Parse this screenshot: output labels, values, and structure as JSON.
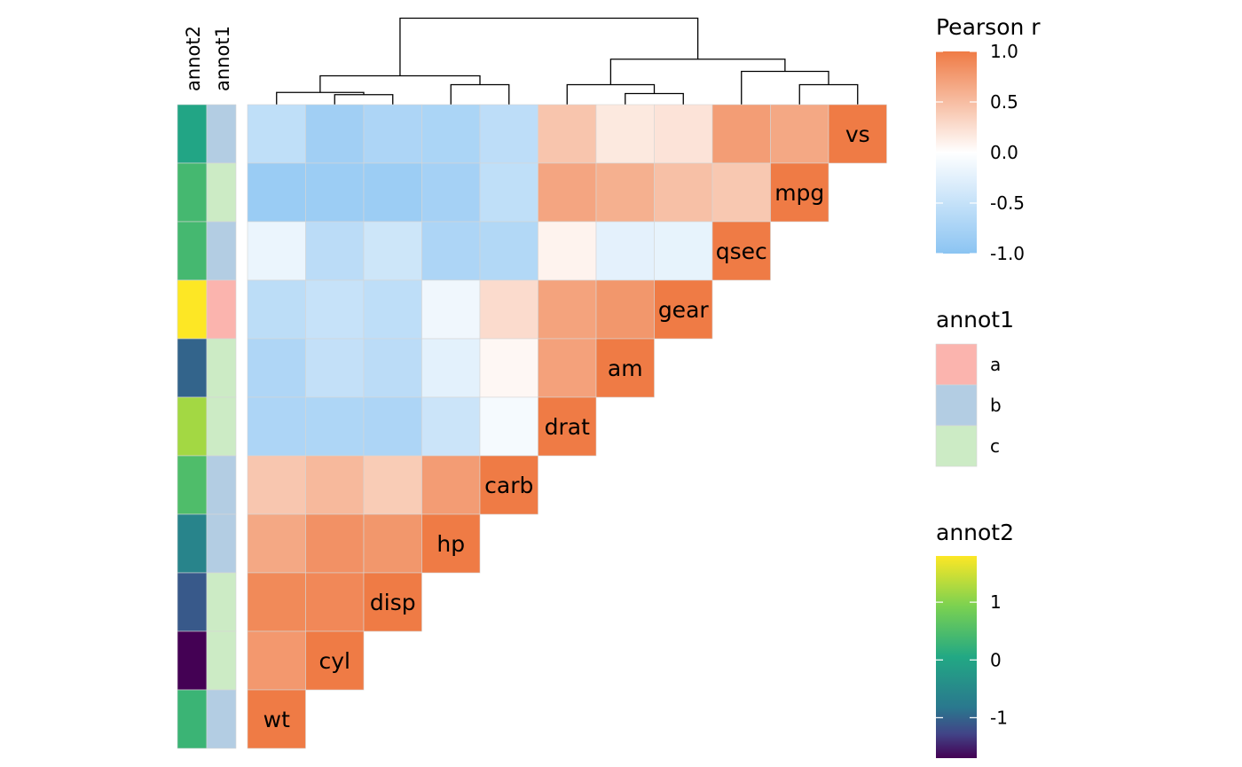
{
  "chart_data": {
    "type": "heatmap",
    "title": "",
    "variables_rows": [
      "vs",
      "mpg",
      "qsec",
      "gear",
      "am",
      "drat",
      "carb",
      "hp",
      "disp",
      "cyl",
      "wt"
    ],
    "variables_cols": [
      "wt",
      "cyl",
      "disp",
      "hp",
      "carb",
      "drat",
      "am",
      "gear",
      "qsec",
      "mpg",
      "vs"
    ],
    "matrix_lower_triangle": [
      [
        -0.55,
        -0.81,
        -0.71,
        -0.72,
        -0.57,
        0.44,
        0.17,
        0.21,
        0.74,
        0.66,
        1.0
      ],
      [
        -0.87,
        -0.85,
        -0.85,
        -0.78,
        -0.55,
        0.68,
        0.6,
        0.48,
        0.42,
        1.0
      ],
      [
        -0.17,
        -0.59,
        -0.43,
        -0.71,
        -0.66,
        0.09,
        -0.23,
        -0.21,
        1.0
      ],
      [
        -0.58,
        -0.49,
        -0.56,
        -0.13,
        0.27,
        0.7,
        0.79,
        1.0
      ],
      [
        -0.69,
        -0.52,
        -0.59,
        -0.24,
        0.06,
        0.71,
        1.0
      ],
      [
        -0.71,
        -0.7,
        -0.71,
        -0.45,
        -0.09,
        1.0
      ],
      [
        0.43,
        0.53,
        0.39,
        0.75,
        1.0
      ],
      [
        0.66,
        0.83,
        0.79,
        1.0
      ],
      [
        0.89,
        0.9,
        1.0
      ],
      [
        0.78,
        1.0
      ],
      [
        1.0
      ]
    ],
    "color_scale": {
      "title": "Pearson r",
      "min": -1.0,
      "max": 1.0,
      "low_color": "#8BC4F2",
      "mid_color": "#FFFFFF",
      "high_color": "#EF7B45",
      "ticks": [
        "1.0",
        "0.5",
        "0.0",
        "-0.5",
        "-1.0"
      ]
    },
    "annotations": {
      "columns": [
        "annot2",
        "annot1"
      ],
      "annot1": [
        "b",
        "c",
        "b",
        "a",
        "c",
        "c",
        "b",
        "b",
        "c",
        "c",
        "b"
      ],
      "annot2": [
        0.0,
        0.4,
        0.4,
        1.8,
        -1.0,
        1.2,
        0.5,
        -0.6,
        -1.1,
        -1.7,
        0.3
      ]
    },
    "legends": {
      "annot1": {
        "title": "annot1",
        "items": [
          {
            "label": "a",
            "color": "#FBB4AE"
          },
          {
            "label": "b",
            "color": "#B3CDE3"
          },
          {
            "label": "c",
            "color": "#CCEBC5"
          }
        ]
      },
      "annot2": {
        "title": "annot2",
        "min": -1.7,
        "max": 1.8,
        "ticks": [
          {
            "label": "1",
            "value": 1
          },
          {
            "label": "0",
            "value": 0
          },
          {
            "label": "-1",
            "value": -1
          }
        ]
      }
    },
    "dendrogram": {
      "leaves": [
        "wt",
        "cyl",
        "disp",
        "hp",
        "carb",
        "drat",
        "am",
        "gear",
        "qsec",
        "mpg",
        "vs"
      ],
      "merges": [
        {
          "a": "cyl",
          "b": "disp",
          "h": 0.5
        },
        {
          "a": "wt",
          "b": 0,
          "h": 0.7
        },
        {
          "a": "hp",
          "b": "carb",
          "h": 1.4
        },
        {
          "a": 1,
          "b": 2,
          "h": 2.2
        },
        {
          "a": "am",
          "b": "gear",
          "h": 0.6
        },
        {
          "a": "drat",
          "b": 4,
          "h": 1.4
        },
        {
          "a": "mpg",
          "b": "vs",
          "h": 1.4
        },
        {
          "a": "qsec",
          "b": 6,
          "h": 2.6
        },
        {
          "a": 5,
          "b": 7,
          "h": 3.7
        },
        {
          "a": 3,
          "b": 8,
          "h": 7.4
        }
      ]
    }
  }
}
